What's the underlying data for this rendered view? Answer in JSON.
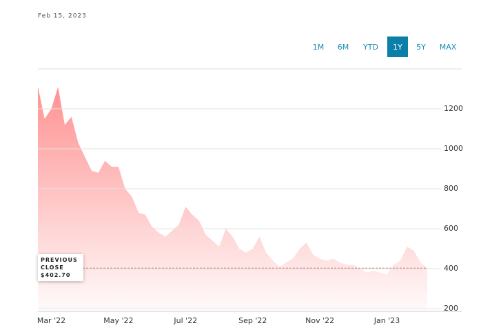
{
  "date": "Feb 15, 2023",
  "ranges": [
    "1M",
    "6M",
    "YTD",
    "1Y",
    "5Y",
    "MAX"
  ],
  "active_range": "1Y",
  "chart_data": {
    "type": "area",
    "color": "#ff8c8c",
    "categories": [
      null,
      null,
      "Mar '22",
      null,
      null,
      null,
      null,
      null,
      null,
      null,
      null,
      null,
      "May '22",
      null,
      null,
      null,
      null,
      null,
      null,
      null,
      null,
      null,
      "Jul '22",
      null,
      null,
      null,
      null,
      null,
      null,
      null,
      null,
      null,
      "Sep '22",
      null,
      null,
      null,
      null,
      null,
      null,
      null,
      null,
      null,
      "Nov '22",
      null,
      null,
      null,
      null,
      null,
      null,
      null,
      null,
      null,
      "Jan '23",
      null,
      null,
      null,
      null,
      null,
      null
    ],
    "values": [
      1310,
      1150,
      1200,
      1310,
      1120,
      1160,
      1030,
      960,
      890,
      880,
      940,
      910,
      910,
      800,
      760,
      680,
      670,
      610,
      580,
      560,
      590,
      620,
      710,
      670,
      640,
      570,
      540,
      510,
      600,
      560,
      500,
      480,
      500,
      560,
      480,
      440,
      410,
      430,
      450,
      500,
      530,
      470,
      450,
      440,
      450,
      430,
      420,
      420,
      400,
      380,
      390,
      380,
      370,
      420,
      440,
      510,
      490,
      430,
      402.7
    ],
    "ylim": [
      200,
      1400
    ],
    "yticks": [
      200,
      400,
      600,
      800,
      1000,
      1200
    ],
    "grid": true,
    "previous_close": {
      "title": "PREVIOUS CLOSE",
      "value": 402.7,
      "label": "$402.70"
    }
  }
}
